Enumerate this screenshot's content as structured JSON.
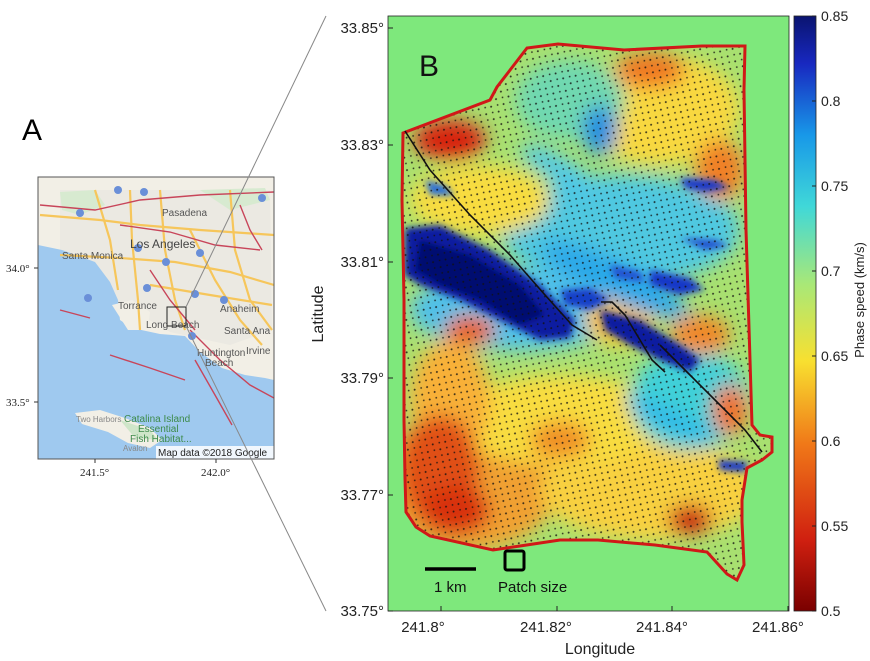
{
  "panel_a": {
    "label": "A",
    "attribution": "Map data ©2018 Google",
    "y_ticks": [
      "34.0°",
      "33.5°"
    ],
    "x_ticks": [
      "241.5°",
      "242.0°"
    ],
    "places": [
      {
        "name": "Pasadena"
      },
      {
        "name": "Los Angeles"
      },
      {
        "name": "Santa Monica"
      },
      {
        "name": "Torrance"
      },
      {
        "name": "Anaheim"
      },
      {
        "name": "Long Beach"
      },
      {
        "name": "Santa Ana"
      },
      {
        "name": "Huntington"
      },
      {
        "name": "Beach"
      },
      {
        "name": "Irvine"
      },
      {
        "name": "Catalina Island"
      },
      {
        "name": "Essential"
      },
      {
        "name": "Fish Habitat..."
      },
      {
        "name": "Two Harbors"
      },
      {
        "name": "Avalon"
      }
    ],
    "colors": {
      "land": "#f2efe6",
      "water": "#9fc9ef",
      "urban": "#ecebe4",
      "fault": "#c8455a",
      "road": "#f6c65b"
    }
  },
  "panel_b": {
    "label": "B",
    "y_label": "Latitude",
    "x_label": "Longitude",
    "y_ticks": [
      "33.85°",
      "33.83°",
      "33.81°",
      "33.79°",
      "33.77°",
      "33.75°"
    ],
    "x_ticks": [
      "241.8°",
      "241.82°",
      "241.84°",
      "241.86°"
    ],
    "scalebar_label": "1 km",
    "patch_label": "Patch size",
    "colors": {
      "background": "#7ee87c",
      "outline": "#d01818"
    }
  },
  "colorbar": {
    "label": "Phase speed (km/s)",
    "ticks": [
      "0.85",
      "0.8",
      "0.75",
      "0.7",
      "0.65",
      "0.6",
      "0.55",
      "0.5"
    ],
    "min": 0.5,
    "max": 0.85
  }
}
